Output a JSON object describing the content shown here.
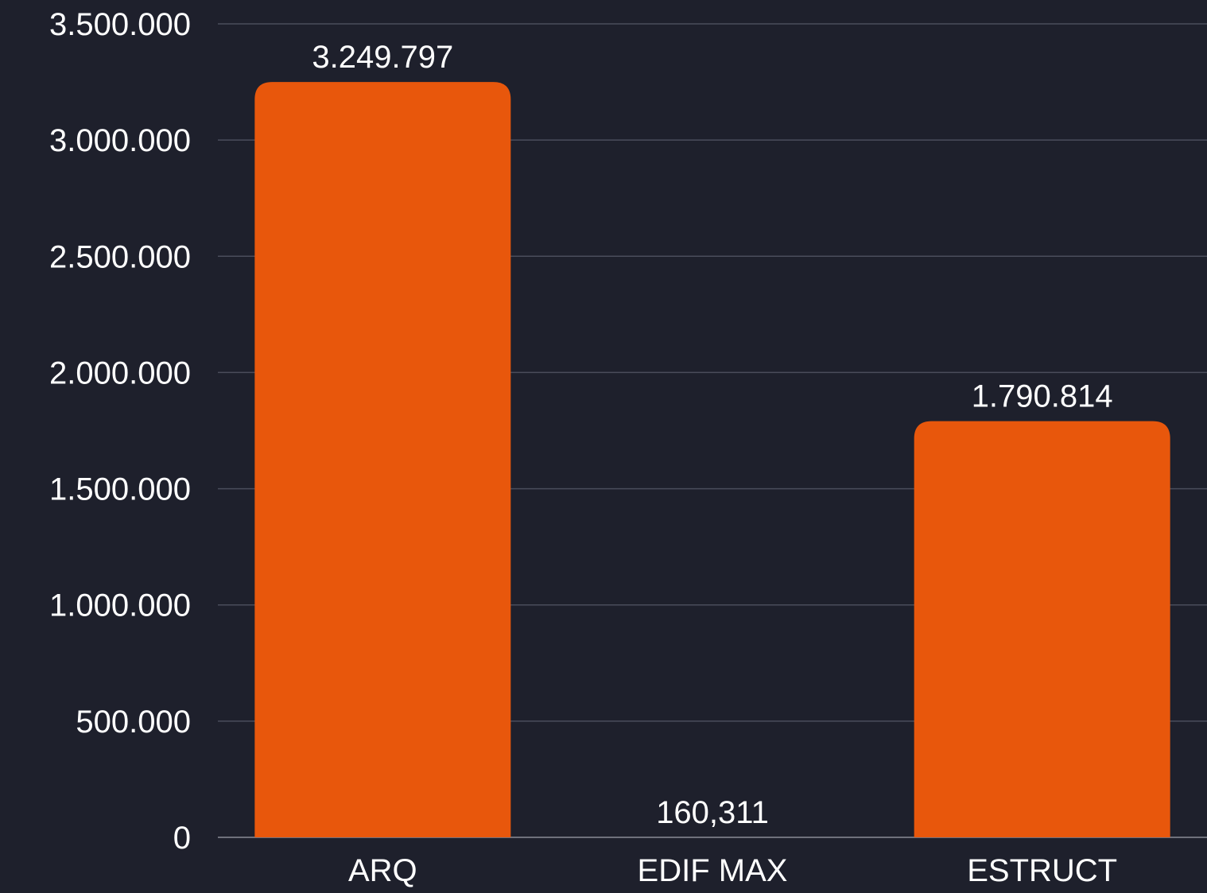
{
  "chart_data": {
    "type": "bar",
    "categories": [
      "ARQ",
      "EDIF MAX",
      "ESTRUCT"
    ],
    "values": [
      3249797,
      160.311,
      1790814
    ],
    "data_labels": [
      "3.249.797",
      "160,311",
      "1.790.814"
    ],
    "ylim": [
      0,
      3500000
    ],
    "yticks": [
      0,
      500000,
      1000000,
      1500000,
      2000000,
      2500000,
      3000000,
      3500000
    ],
    "ytick_labels": [
      "0",
      "500.000",
      "1.000.000",
      "1.500.000",
      "2.000.000",
      "2.500.000",
      "3.000.000",
      "3.500.000"
    ],
    "grid": true,
    "colors": {
      "background": "#1e202c",
      "bar": "#e8570c",
      "text": "#ffffff",
      "grid": "#4a4d5b"
    }
  }
}
